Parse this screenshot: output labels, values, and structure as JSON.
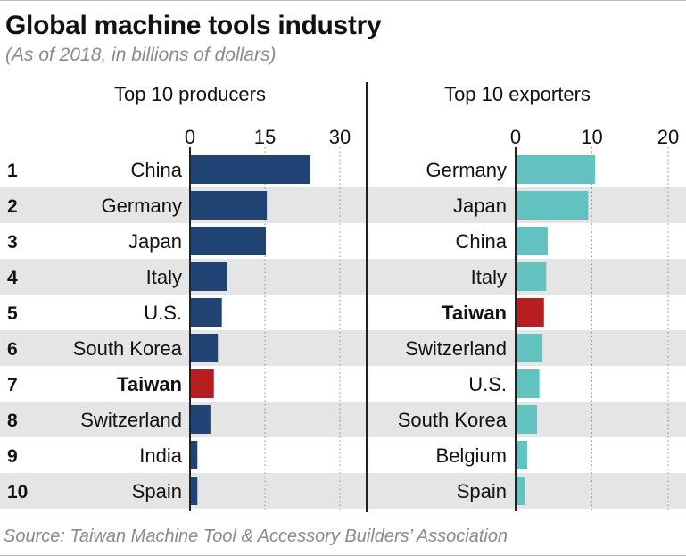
{
  "title": "Global machine tools industry",
  "subtitle": "(As of 2018, in billions of dollars)",
  "source": "Source: Taiwan Machine Tool & Accessory Builders’ Association",
  "colors": {
    "producer_bar": "#1f4372",
    "exporter_bar": "#62c2bf",
    "highlight_bar": "#b71e22",
    "band": "#e5e5e5",
    "grid": "#888888"
  },
  "chart_data": [
    {
      "type": "bar",
      "orientation": "horizontal",
      "title": "Top 10 producers",
      "ranks": [
        "1",
        "2",
        "3",
        "4",
        "5",
        "6",
        "7",
        "8",
        "9",
        "10"
      ],
      "categories": [
        "China",
        "Germany",
        "Japan",
        "Italy",
        "U.S.",
        "South Korea",
        "Taiwan",
        "Switzerland",
        "India",
        "Spain"
      ],
      "values": [
        23.8,
        15.2,
        15.0,
        7.3,
        6.2,
        5.4,
        4.6,
        3.9,
        1.3,
        1.3
      ],
      "highlight": "Taiwan",
      "xlim": [
        0,
        30
      ],
      "xticks": [
        {
          "value": 0,
          "label": "0"
        },
        {
          "value": 15,
          "label": "15"
        },
        {
          "value": 30,
          "label": "30"
        }
      ]
    },
    {
      "type": "bar",
      "orientation": "horizontal",
      "title": "Top 10 exporters",
      "categories": [
        "Germany",
        "Japan",
        "China",
        "Italy",
        "Taiwan",
        "Switzerland",
        "U.S.",
        "South Korea",
        "Belgium",
        "Spain"
      ],
      "values": [
        10.3,
        9.4,
        4.1,
        3.9,
        3.6,
        3.4,
        3.0,
        2.7,
        1.4,
        1.1
      ],
      "highlight": "Taiwan",
      "xlim": [
        0,
        20
      ],
      "xticks": [
        {
          "value": 0,
          "label": "0"
        },
        {
          "value": 10,
          "label": "10"
        },
        {
          "value": 20,
          "label": "20"
        }
      ]
    }
  ]
}
